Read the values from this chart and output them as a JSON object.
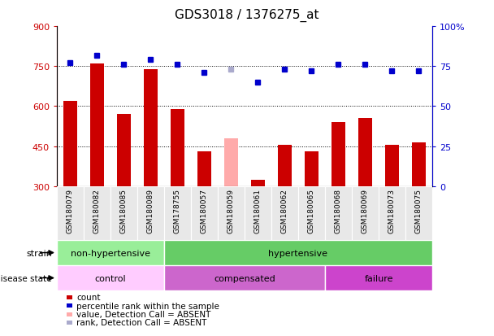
{
  "title": "GDS3018 / 1376275_at",
  "samples": [
    "GSM180079",
    "GSM180082",
    "GSM180085",
    "GSM180089",
    "GSM178755",
    "GSM180057",
    "GSM180059",
    "GSM180061",
    "GSM180062",
    "GSM180065",
    "GSM180068",
    "GSM180069",
    "GSM180073",
    "GSM180075"
  ],
  "counts": [
    620,
    760,
    570,
    740,
    590,
    430,
    480,
    325,
    455,
    430,
    540,
    555,
    455,
    465
  ],
  "absent_count_idx": 6,
  "absent_count_val": 480,
  "percentiles": [
    77,
    82,
    76,
    79,
    76,
    71,
    73,
    65,
    73,
    72,
    76,
    76,
    72,
    72
  ],
  "absent_pct_idx": 6,
  "absent_pct_val": 73,
  "count_color": "#cc0000",
  "absent_count_color": "#ffaaaa",
  "percentile_color": "#0000cc",
  "absent_pct_color": "#aaaacc",
  "ylim_left": [
    300,
    900
  ],
  "ylim_right": [
    0,
    100
  ],
  "yticks_left": [
    300,
    450,
    600,
    750,
    900
  ],
  "yticks_right": [
    0,
    25,
    50,
    75,
    100
  ],
  "grid_lines": [
    450,
    600,
    750
  ],
  "strain_groups": [
    {
      "label": "non-hypertensive",
      "start": 0,
      "end": 4,
      "color": "#99ee99"
    },
    {
      "label": "hypertensive",
      "start": 4,
      "end": 14,
      "color": "#66cc66"
    }
  ],
  "disease_colors": [
    "#ffccff",
    "#cc66cc",
    "#cc44cc"
  ],
  "disease_groups": [
    {
      "label": "control",
      "start": 0,
      "end": 4
    },
    {
      "label": "compensated",
      "start": 4,
      "end": 10
    },
    {
      "label": "failure",
      "start": 10,
      "end": 14
    }
  ],
  "legend_items": [
    {
      "label": "count",
      "color": "#cc0000"
    },
    {
      "label": "percentile rank within the sample",
      "color": "#0000cc"
    },
    {
      "label": "value, Detection Call = ABSENT",
      "color": "#ffaaaa"
    },
    {
      "label": "rank, Detection Call = ABSENT",
      "color": "#aaaacc"
    }
  ],
  "bar_width": 0.5,
  "marker_size": 5,
  "bg_color": "#e8e8e8"
}
